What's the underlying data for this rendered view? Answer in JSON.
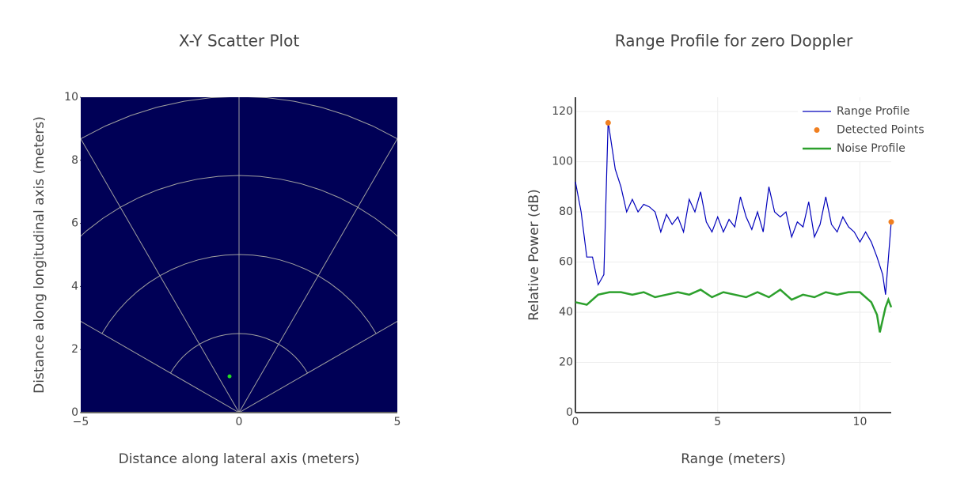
{
  "chart_data": [
    {
      "type": "scatter",
      "title": "X-Y Scatter Plot",
      "x_label": "Distance along lateral axis (meters)",
      "y_label": "Distance along longitudinal axis (meters)",
      "xlim": [
        -5,
        5
      ],
      "ylim": [
        0,
        10
      ],
      "xticks": [
        {
          "value": -5,
          "label": "−5"
        },
        0,
        5
      ],
      "yticks": [
        0,
        2,
        4,
        6,
        8,
        10
      ],
      "background": "#000056",
      "grid": false,
      "series": [
        {
          "color": "#22dd22",
          "x": [
            -0.3
          ],
          "values": [
            1.15
          ]
        }
      ]
    },
    {
      "type": "line",
      "title": "Range Profile for zero Doppler",
      "x_label": "Range (meters)",
      "y_label": "Relative Power (dB)",
      "xlim": [
        0,
        11.1
      ],
      "ylim": [
        0,
        125.7
      ],
      "xticks": [
        0,
        5,
        10
      ],
      "yticks": [
        0,
        20,
        40,
        60,
        80,
        100,
        120
      ],
      "background": "#ffffff",
      "grid": true,
      "legend": "top-right",
      "series": [
        {
          "name": "Range Profile",
          "color": "#0000bb",
          "mode": "lines",
          "x": [
            0,
            0.2,
            0.4,
            0.6,
            0.8,
            1.0,
            1.15,
            1.4,
            1.6,
            1.8,
            2.0,
            2.2,
            2.4,
            2.6,
            2.8,
            3.0,
            3.2,
            3.4,
            3.6,
            3.8,
            4.0,
            4.2,
            4.4,
            4.6,
            4.8,
            5.0,
            5.2,
            5.4,
            5.6,
            5.8,
            6.0,
            6.2,
            6.4,
            6.6,
            6.8,
            7.0,
            7.2,
            7.4,
            7.6,
            7.8,
            8.0,
            8.2,
            8.4,
            8.6,
            8.8,
            9.0,
            9.2,
            9.4,
            9.6,
            9.8,
            10.0,
            10.2,
            10.4,
            10.6,
            10.8,
            10.9,
            11.1
          ],
          "values": [
            92,
            80,
            62,
            62,
            51,
            55,
            116,
            97,
            90,
            80,
            85,
            80,
            83,
            82,
            80,
            72,
            79,
            75,
            78,
            72,
            85,
            80,
            88,
            76,
            72,
            78,
            72,
            77,
            74,
            86,
            78,
            73,
            80,
            72,
            90,
            80,
            78,
            80,
            70,
            76,
            74,
            84,
            70,
            75,
            86,
            75,
            72,
            78,
            74,
            72,
            68,
            72,
            68,
            62,
            55,
            47,
            76
          ]
        },
        {
          "name": "Detected Points",
          "color": "#f07f20",
          "mode": "markers",
          "x": [
            1.15,
            11.1
          ],
          "values": [
            115.5,
            76
          ]
        },
        {
          "name": "Noise Profile",
          "color": "#2ca02c",
          "mode": "lines",
          "x": [
            0,
            0.4,
            0.8,
            1.2,
            1.6,
            2.0,
            2.4,
            2.8,
            3.2,
            3.6,
            4.0,
            4.4,
            4.8,
            5.2,
            5.6,
            6.0,
            6.4,
            6.8,
            7.2,
            7.6,
            8.0,
            8.4,
            8.8,
            9.2,
            9.6,
            10.0,
            10.4,
            10.6,
            10.7,
            10.9,
            11.0,
            11.1
          ],
          "values": [
            44,
            43,
            47,
            48,
            48,
            47,
            48,
            46,
            47,
            48,
            47,
            49,
            46,
            48,
            47,
            46,
            48,
            46,
            49,
            45,
            47,
            46,
            48,
            47,
            48,
            48,
            44,
            39,
            32,
            42,
            45,
            42
          ]
        }
      ]
    }
  ]
}
